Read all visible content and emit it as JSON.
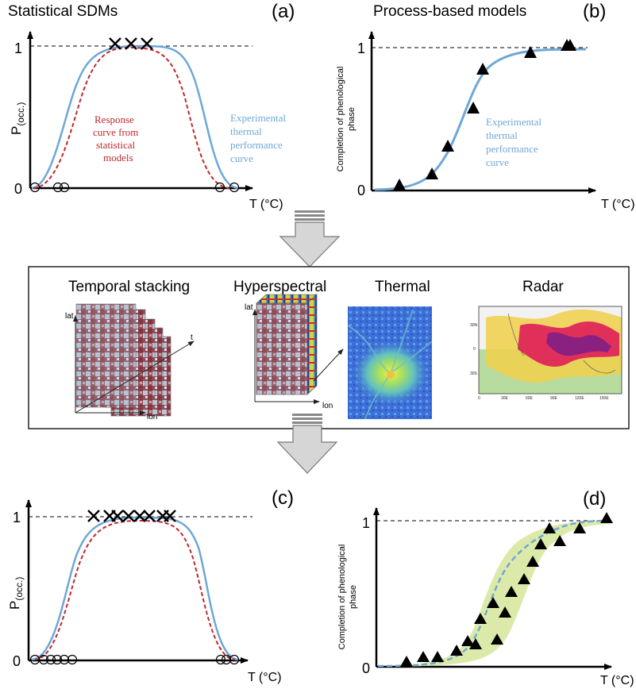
{
  "panel_a": {
    "heading": "Statistical SDMs",
    "letter": "(a)",
    "y_label": "P",
    "y_label_sub": "(occ.)",
    "y_tick_top": "1",
    "y_tick_bottom": "0",
    "x_label": "T (°C)",
    "red_label": [
      "Response",
      "curve from",
      "statistical",
      "models"
    ],
    "blue_label": [
      "Experimental",
      "thermal",
      "performance",
      "curve"
    ],
    "presence_count": 3,
    "absence_count": 5
  },
  "panel_b": {
    "heading": "Process-based models",
    "letter": "(b)",
    "y_label": [
      "Completion of phenological",
      "phase"
    ],
    "y_tick_top": "1",
    "y_tick_bottom": "0",
    "x_label": "T (°C)",
    "blue_label": [
      "Experimental",
      "thermal",
      "performance",
      "curve"
    ],
    "observation_count": 8
  },
  "remote_sensing": {
    "temporal_title": "Temporal stacking",
    "hyper_title": "Hyperspectral",
    "thermal_title": "Thermal",
    "radar_title": "Radar",
    "axis_lat": "lat",
    "axis_lon": "lon",
    "axis_t": "t",
    "radar_lat_ticks": [
      "30N",
      "0",
      "30S"
    ],
    "radar_lon_ticks": [
      "0",
      "30E",
      "60E",
      "90E",
      "120E",
      "150E"
    ]
  },
  "panel_c": {
    "letter": "(c)",
    "y_label": "P",
    "y_label_sub": "(occ.)",
    "y_tick_top": "1",
    "y_tick_bottom": "0",
    "x_label": "T (°C)",
    "presence_count": 8,
    "absence_count": 9
  },
  "panel_d": {
    "letter": "(d)",
    "y_label": [
      "Completion of phenological",
      "phase"
    ],
    "y_tick_top": "1",
    "y_tick_bottom": "0",
    "x_label": "T (°C)",
    "observation_count": 18
  },
  "colors": {
    "blue_curve": "#6fa7d6",
    "red_curve": "#c0282d",
    "band_green": "#d8e8a0",
    "arrow_fill": "#d6d6d6"
  }
}
